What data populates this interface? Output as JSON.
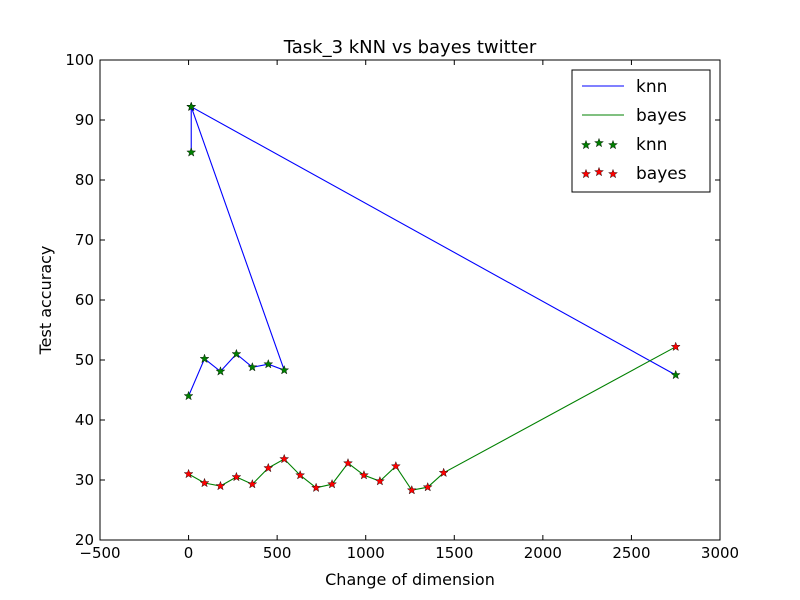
{
  "chart_data": {
    "type": "line",
    "title": "Task_3 kNN vs bayes twitter",
    "xlabel": "Change of dimension",
    "ylabel": "Test accuracy",
    "xlim": [
      -500,
      3000
    ],
    "ylim": [
      20,
      100
    ],
    "xticks": [
      -500,
      0,
      500,
      1000,
      1500,
      2000,
      2500,
      3000
    ],
    "yticks": [
      20,
      30,
      40,
      50,
      60,
      70,
      80,
      90,
      100
    ],
    "grid": false,
    "legend_position": "top-right",
    "colors": {
      "knn": "#0000ff",
      "bayes": "#008000",
      "knn_marker": "#008000",
      "bayes_marker": "#ff0000"
    },
    "series": [
      {
        "name": "knn",
        "kind": "line",
        "color": "#0000ff",
        "x": [
          0,
          90,
          180,
          270,
          360,
          450,
          540,
          15,
          15,
          15,
          2750
        ],
        "y": [
          44.0,
          50.2,
          48.1,
          51.0,
          48.8,
          49.3,
          48.3,
          92.2,
          84.6,
          92.2,
          47.5
        ]
      },
      {
        "name": "bayes",
        "kind": "line",
        "color": "#008000",
        "x": [
          0,
          90,
          180,
          270,
          360,
          450,
          540,
          630,
          720,
          810,
          900,
          990,
          1080,
          1170,
          1260,
          1350,
          1440,
          2750
        ],
        "y": [
          31.0,
          29.5,
          29.0,
          30.5,
          29.3,
          32.0,
          33.5,
          30.8,
          28.7,
          29.3,
          32.8,
          30.8,
          29.8,
          32.3,
          28.3,
          28.8,
          31.2,
          52.2
        ]
      },
      {
        "name": "knn",
        "kind": "markers",
        "color": "#008000",
        "x": [
          0,
          90,
          180,
          270,
          360,
          450,
          540,
          15,
          15,
          15,
          2750
        ],
        "y": [
          44.0,
          50.2,
          48.1,
          51.0,
          48.8,
          49.3,
          48.3,
          92.2,
          84.6,
          92.2,
          47.5
        ]
      },
      {
        "name": "bayes",
        "kind": "markers",
        "color": "#ff0000",
        "x": [
          0,
          90,
          180,
          270,
          360,
          450,
          540,
          630,
          720,
          810,
          900,
          990,
          1080,
          1170,
          1260,
          1350,
          1440,
          2750
        ],
        "y": [
          31.0,
          29.5,
          29.0,
          30.5,
          29.3,
          32.0,
          33.5,
          30.8,
          28.7,
          29.3,
          32.8,
          30.8,
          29.8,
          32.3,
          28.3,
          28.8,
          31.2,
          52.2
        ]
      }
    ],
    "legend": [
      {
        "label": "knn",
        "kind": "line",
        "color": "#0000ff"
      },
      {
        "label": "bayes",
        "kind": "line",
        "color": "#008000"
      },
      {
        "label": "knn",
        "kind": "markers",
        "color": "#008000"
      },
      {
        "label": "bayes",
        "kind": "markers",
        "color": "#ff0000"
      }
    ]
  }
}
